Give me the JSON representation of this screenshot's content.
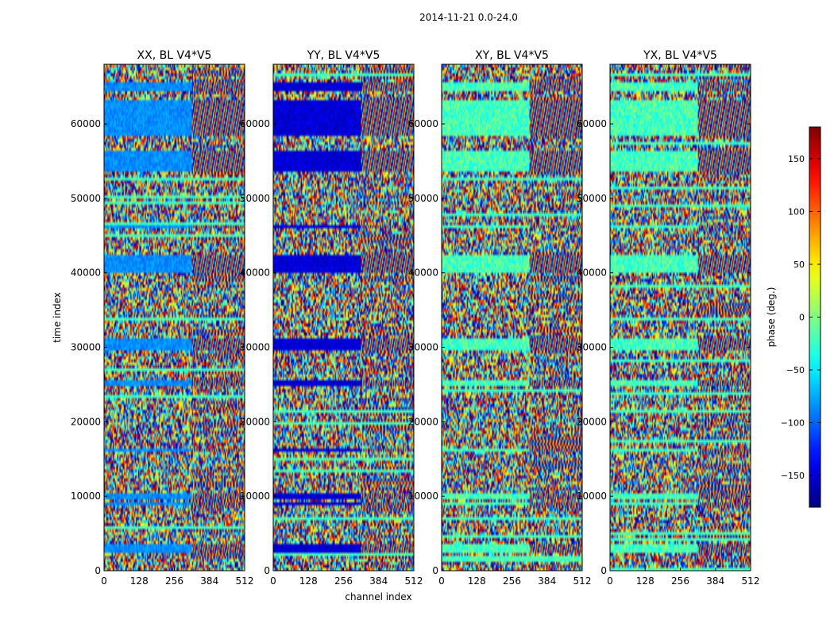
{
  "figure": {
    "suptitle": "2014-11-21 0.0-24.0"
  },
  "chart_data": {
    "type": "heatmap",
    "xlabel": "channel index",
    "ylabel": "time index",
    "xlim": [
      0,
      512
    ],
    "ylim": [
      0,
      68000
    ],
    "xticks": [
      0,
      128,
      256,
      384,
      512
    ],
    "xtick_labels": [
      "0",
      "128",
      "256",
      "384",
      "512"
    ],
    "yticks": [
      0,
      10000,
      20000,
      30000,
      40000,
      50000,
      60000
    ],
    "ytick_labels": [
      "0",
      "10000",
      "20000",
      "30000",
      "40000",
      "50000",
      "60000"
    ],
    "colormap": "jet",
    "colorbar": {
      "label": "phase (deg.)",
      "range": [
        -180,
        180
      ],
      "ticks": [
        -150,
        -100,
        -50,
        0,
        50,
        100,
        150
      ],
      "tick_labels": [
        "−150",
        "−100",
        "−50",
        "0",
        "50",
        "100",
        "150"
      ]
    },
    "panels": [
      {
        "title": "XX, BL V4*V5",
        "ylabel_shown": true,
        "xlabel_shown": false,
        "coherent_phase": -85,
        "transition_channel": 320
      },
      {
        "title": "YY, BL V4*V5",
        "ylabel_shown": false,
        "xlabel_shown": true,
        "coherent_phase": -150,
        "transition_channel": 320
      },
      {
        "title": "XY, BL V4*V5",
        "ylabel_shown": false,
        "xlabel_shown": false,
        "coherent_phase": null,
        "transition_channel": 320
      },
      {
        "title": "YX, BL V4*V5",
        "ylabel_shown": false,
        "xlabel_shown": false,
        "coherent_phase": null,
        "transition_channel": 320
      }
    ],
    "coherent_bands": [
      [
        2500,
        3500
      ],
      [
        8700,
        9300
      ],
      [
        9500,
        10500
      ],
      [
        16000,
        16500
      ],
      [
        24800,
        25600
      ],
      [
        29800,
        31200
      ],
      [
        40200,
        41000
      ],
      [
        41400,
        42400
      ],
      [
        46000,
        46500
      ],
      [
        53800,
        56500
      ],
      [
        58500,
        59500
      ],
      [
        59800,
        61800
      ],
      [
        62000,
        63200
      ],
      [
        64500,
        65500
      ]
    ]
  },
  "colors": {
    "axes": "#000000",
    "background": "#ffffff"
  }
}
